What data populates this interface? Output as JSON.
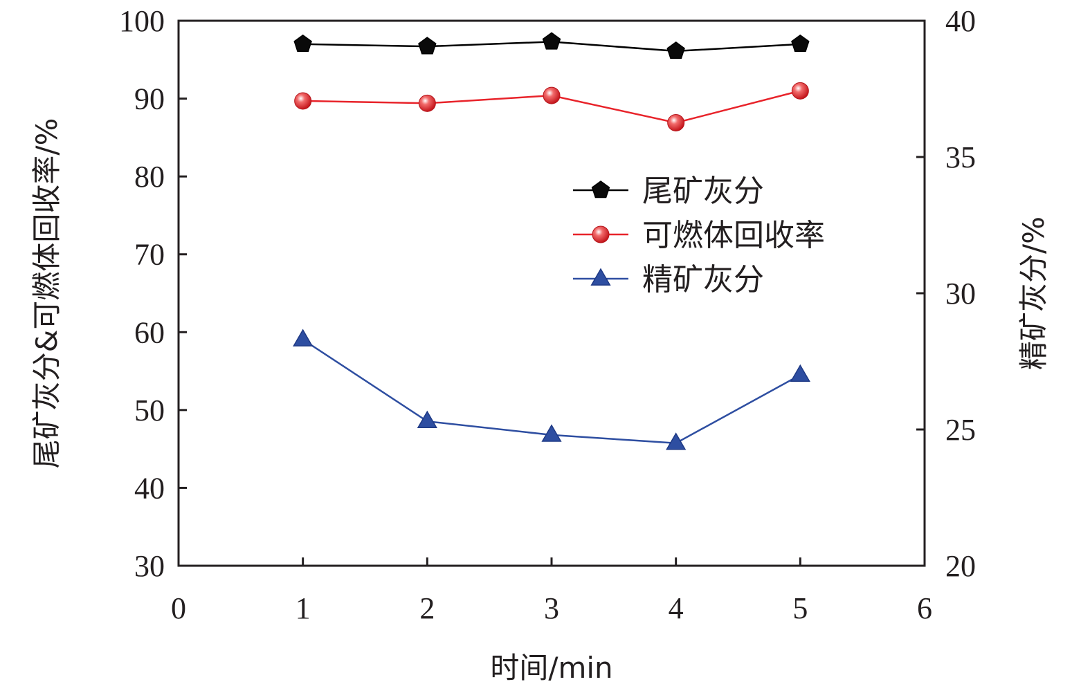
{
  "chart_data": {
    "type": "line",
    "xlabel": "时间/min",
    "ylabel_left": "尾矿灰分&可燃体回收率/%",
    "ylabel_right": "精矿灰分/%",
    "xlim": [
      0,
      6
    ],
    "ylim_left": [
      30,
      100
    ],
    "ylim_right": [
      20,
      40
    ],
    "x_ticks": [
      "0",
      "1",
      "2",
      "3",
      "4",
      "5",
      "6"
    ],
    "y_left_ticks": [
      "30",
      "40",
      "50",
      "60",
      "70",
      "80",
      "90",
      "100"
    ],
    "y_right_ticks": [
      "20",
      "25",
      "30",
      "35",
      "40"
    ],
    "grid": false,
    "legend_position": "upper-right-inside",
    "x": [
      1,
      2,
      3,
      4,
      5
    ],
    "series": [
      {
        "name": "尾矿灰分",
        "axis": "left",
        "marker": "pentagon",
        "color": "#000000",
        "values": [
          97.0,
          96.7,
          97.3,
          96.1,
          97.0
        ]
      },
      {
        "name": "可燃体回收率",
        "axis": "left",
        "marker": "sphere",
        "color": "#e8232a",
        "values": [
          89.7,
          89.4,
          90.4,
          86.9,
          91.0
        ]
      },
      {
        "name": "精矿灰分",
        "axis": "right",
        "marker": "triangle",
        "color": "#2e4ea1",
        "values": [
          28.3,
          25.3,
          24.8,
          24.5,
          27.0
        ]
      }
    ]
  }
}
